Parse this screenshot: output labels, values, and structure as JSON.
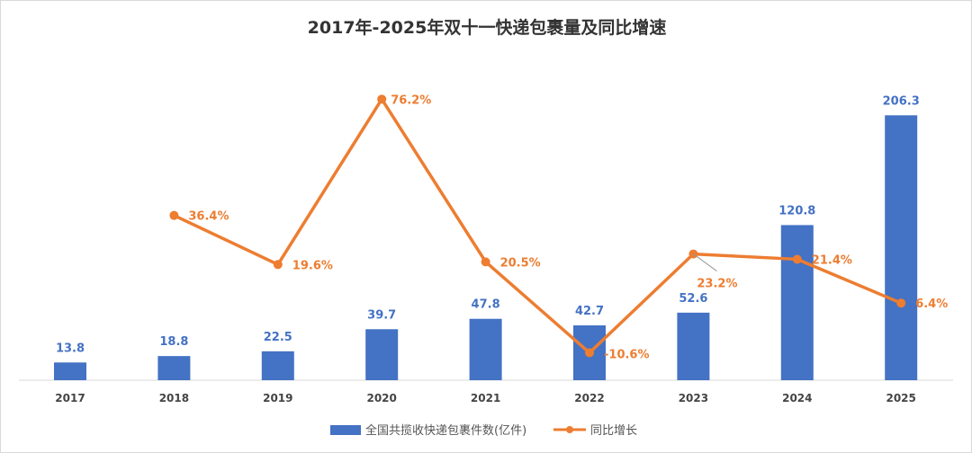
{
  "chart_data": {
    "type": "bar+line",
    "title": "2017年-2025年双十一快递包裹量及同比增速",
    "categories": [
      "2017",
      "2018",
      "2019",
      "2020",
      "2021",
      "2022",
      "2023",
      "2024",
      "2025"
    ],
    "series": [
      {
        "name": "全国共揽收快递包裹件数(亿件)",
        "type": "bar",
        "axis": "primary",
        "color": "#4472c4",
        "values": [
          13.8,
          18.8,
          22.5,
          39.7,
          47.8,
          42.7,
          52.6,
          120.8,
          206.3
        ],
        "labels": [
          "13.8",
          "18.8",
          "22.5",
          "39.7",
          "47.8",
          "42.7",
          "52.6",
          "120.8",
          "206.3"
        ]
      },
      {
        "name": "同比增长",
        "type": "line",
        "axis": "secondary",
        "color": "#ed7d31",
        "values": [
          null,
          36.4,
          19.6,
          76.2,
          20.5,
          -10.6,
          23.2,
          21.4,
          6.4
        ],
        "labels": [
          "",
          "36.4%",
          "19.6%",
          "76.2%",
          "20.5%",
          "-10.6%",
          "23.2%",
          "21.4%",
          "6.4%"
        ]
      }
    ],
    "ylim": [
      0,
      210
    ],
    "ylim_secondary": [
      -20,
      72.3
    ],
    "axes_visible": false,
    "grid": false,
    "legend": "bottom"
  }
}
